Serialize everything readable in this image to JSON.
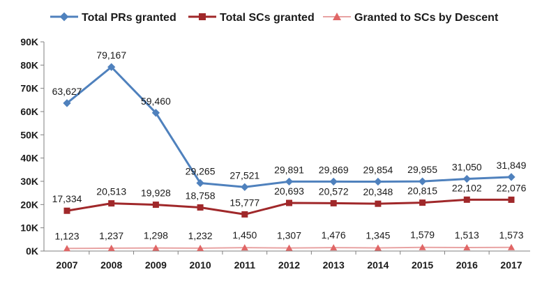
{
  "chart_data": {
    "type": "line",
    "title": "",
    "xlabel": "",
    "ylabel": "",
    "x": [
      "2007",
      "2008",
      "2009",
      "2010",
      "2011",
      "2012",
      "2013",
      "2014",
      "2015",
      "2016",
      "2017"
    ],
    "ylim": [
      0,
      90000
    ],
    "yticks": [
      "0K",
      "10K",
      "20K",
      "30K",
      "40K",
      "50K",
      "60K",
      "70K",
      "80K",
      "90K"
    ],
    "grid": false,
    "legend": "top",
    "series": [
      {
        "name": "Total PRs granted",
        "color": "#4f81bd",
        "marker": "diamond",
        "values": [
          63627,
          79167,
          59460,
          29265,
          27521,
          29891,
          29869,
          29854,
          29955,
          31050,
          31849
        ],
        "labels": [
          "63,627",
          "79,167",
          "59,460",
          "29,265",
          "27,521",
          "29,891",
          "29,869",
          "29,854",
          "29,955",
          "31,050",
          "31,849"
        ]
      },
      {
        "name": "Total SCs granted",
        "color": "#a0282a",
        "marker": "square",
        "values": [
          17334,
          20513,
          19928,
          18758,
          15777,
          20693,
          20572,
          20348,
          20815,
          22102,
          22076
        ],
        "labels": [
          "17,334",
          "20,513",
          "19,928",
          "18,758",
          "15,777",
          "20,693",
          "20,572",
          "20,348",
          "20,815",
          "22,102",
          "22,076"
        ]
      },
      {
        "name": "Granted to SCs by Descent",
        "color": "#e8a3a3",
        "marker": "triangle",
        "values": [
          1123,
          1237,
          1298,
          1232,
          1450,
          1307,
          1476,
          1345,
          1579,
          1513,
          1573
        ],
        "labels": [
          "1,123",
          "1,237",
          "1,298",
          "1,232",
          "1,450",
          "1,307",
          "1,476",
          "1,345",
          "1,579",
          "1,513",
          "1,573"
        ]
      }
    ]
  }
}
